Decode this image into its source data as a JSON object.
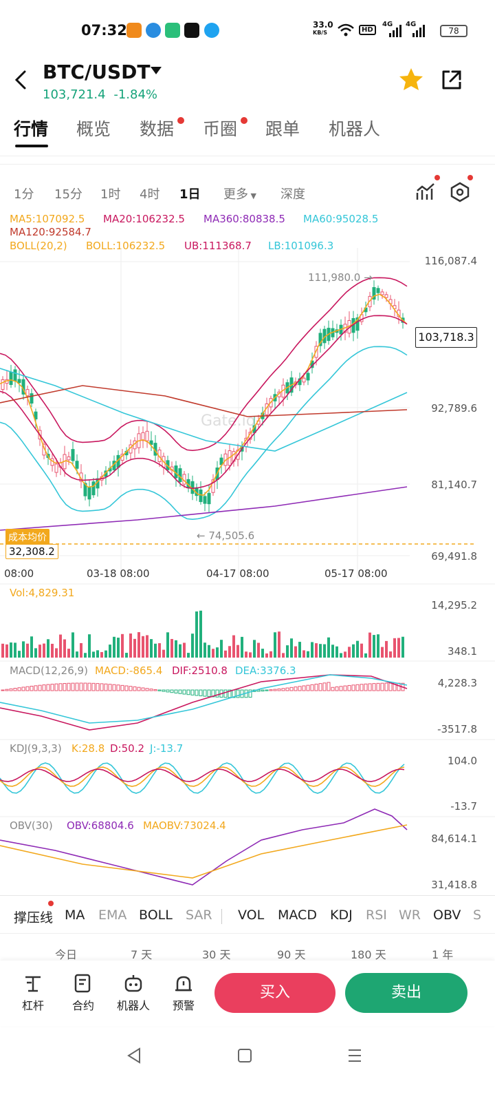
{
  "status_bar": {
    "time": "07:32",
    "net_speed": "33.0",
    "net_unit": "KB/S",
    "hd_label": "HD",
    "sig1": "4G",
    "sig2": "4G",
    "battery": "78"
  },
  "header": {
    "pair": "BTC/USDT",
    "price": "103,721.4",
    "change": "-1.84%"
  },
  "tabs": [
    {
      "label": "行情",
      "active": true,
      "dot": false
    },
    {
      "label": "概览",
      "active": false,
      "dot": false
    },
    {
      "label": "数据",
      "active": false,
      "dot": true
    },
    {
      "label": "币圈",
      "active": false,
      "dot": true
    },
    {
      "label": "跟单",
      "active": false,
      "dot": false
    },
    {
      "label": "机器人",
      "active": false,
      "dot": false
    }
  ],
  "timeframes": [
    "1分",
    "15分",
    "1时",
    "4时",
    "1日",
    "更多",
    "深度"
  ],
  "indicators": {
    "ma5": "MA5:107092.5",
    "ma20": "MA20:106232.5",
    "ma360": "MA360:80838.5",
    "ma60": "MA60:95028.5",
    "ma120": "MA120:92584.7",
    "boll": "BOLL(20,2)",
    "boll_mid": "BOLL:106232.5",
    "ub": "UB:111368.7",
    "lb": "LB:101096.3"
  },
  "main_chart": {
    "axis": [
      "116,087.4",
      "92,789.6",
      "81,140.7",
      "69,491.8"
    ],
    "high_label": "111,980.0 →",
    "low_label": "← 74,505.6",
    "current_price": "103,718.3",
    "cost_label": "成本均价",
    "cost_value": "32,308.2",
    "dates": [
      "08:00",
      "03-18 08:00",
      "04-17 08:00",
      "05-17 08:00"
    ],
    "watermark": "Gate.io",
    "colors": {
      "up": "#e8546f",
      "down": "#21b07c",
      "ma5": "#f2a81d",
      "ma20": "#c8175e",
      "ma60": "#34c6d8",
      "ma120": "#c0392b",
      "ma360": "#8e2ab5"
    }
  },
  "vol": {
    "label": "Vol:4,829.31",
    "axis_top": "14,295.2",
    "axis_bottom": "348.1"
  },
  "macd": {
    "title": "MACD(12,26,9)",
    "macd": "MACD:-865.4",
    "dif": "DIF:2510.8",
    "dea": "DEA:3376.3",
    "axis_top": "4,228.3",
    "axis_bottom": "-3517.8"
  },
  "kdj": {
    "title": "KDJ(9,3,3)",
    "k": "K:28.8",
    "d": "D:50.2",
    "j": "J:-13.7",
    "axis_top": "104.0",
    "axis_bottom": "-13.7"
  },
  "obv": {
    "title": "OBV(30)",
    "obv": "OBV:68804.6",
    "maobv": "MAOBV:73024.4",
    "axis_top": "84,614.1",
    "axis_bottom": "31,418.8"
  },
  "indicator_tabs": [
    "撑压线",
    "MA",
    "EMA",
    "BOLL",
    "SAR",
    "VOL",
    "MACD",
    "KDJ",
    "RSI",
    "WR",
    "OBV",
    "S"
  ],
  "periods": [
    "今日",
    "7 天",
    "30 天",
    "90 天",
    "180 天",
    "1 年"
  ],
  "bottom_bar": {
    "items": [
      "杠杆",
      "合约",
      "机器人",
      "预警"
    ],
    "buy": "买入",
    "sell": "卖出"
  }
}
